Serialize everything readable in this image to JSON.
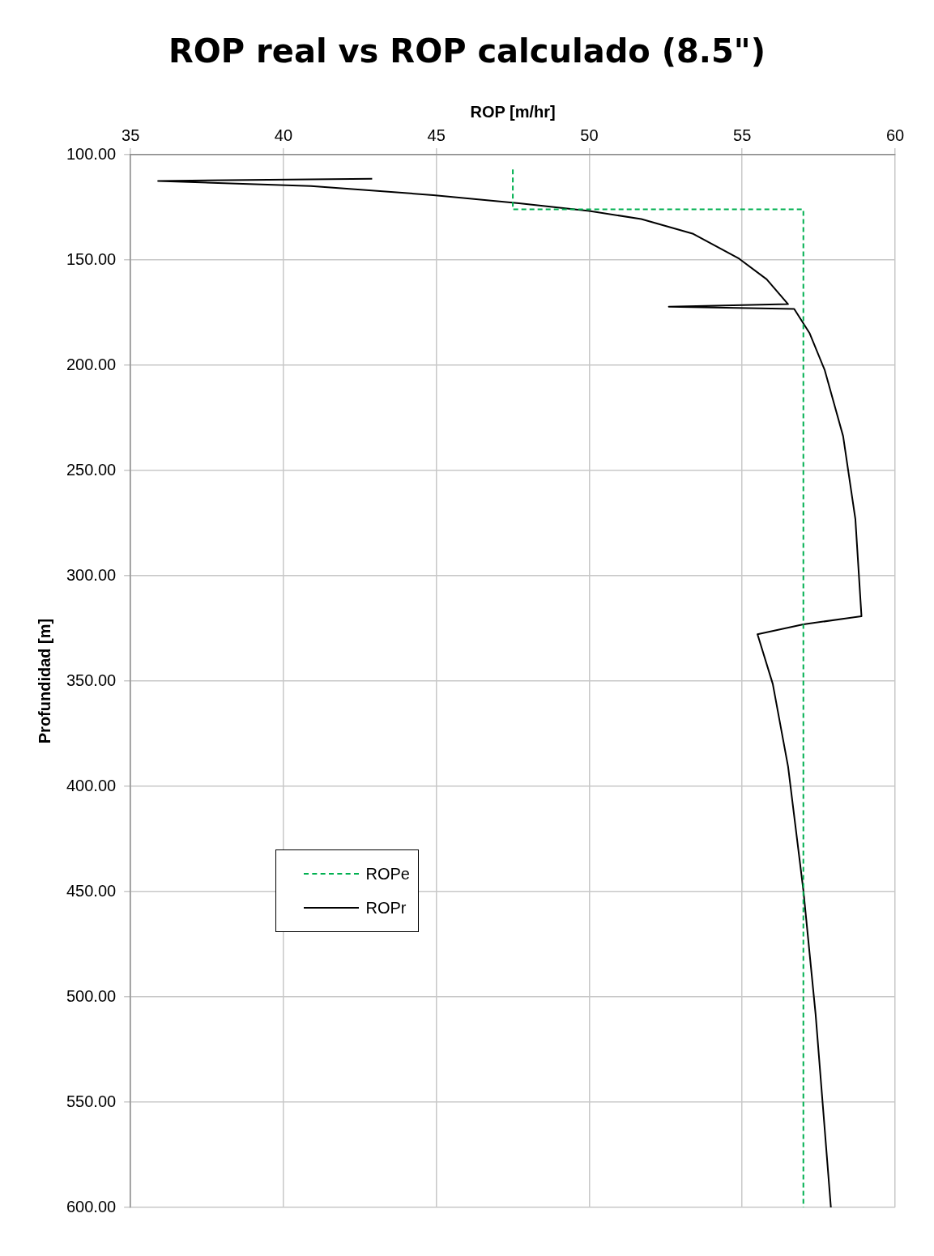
{
  "chart_data": {
    "type": "line",
    "title": "ROP real vs ROP calculado (8.5\")",
    "xlabel": "ROP [m/hr]",
    "ylabel": "Profundidad [m]",
    "xlim": [
      35,
      60
    ],
    "xticks": [
      35,
      40,
      45,
      50,
      55,
      60
    ],
    "ylim": [
      600,
      100
    ],
    "yticks": [
      {
        "value": 100,
        "label": "100.00"
      },
      {
        "value": 150,
        "label": "150.00"
      },
      {
        "value": 200,
        "label": "200.00"
      },
      {
        "value": 250,
        "label": "250.00"
      },
      {
        "value": 300,
        "label": "300.00"
      },
      {
        "value": 350,
        "label": "350.00"
      },
      {
        "value": 400,
        "label": "400.00"
      },
      {
        "value": 450,
        "label": "450.00"
      },
      {
        "value": 500,
        "label": "500.00"
      },
      {
        "value": 550,
        "label": "550.00"
      },
      {
        "value": 600,
        "label": "600.00"
      }
    ],
    "grid": true,
    "legend": "left",
    "marker": "none",
    "series": [
      {
        "name": "ROPe",
        "color": "#00b050",
        "line_style": "dashed",
        "x": [
          47.5,
          47.5,
          57,
          57
        ],
        "values": [
          107,
          126,
          126,
          600
        ]
      },
      {
        "name": "ROPr",
        "color": "#000000",
        "line_style": "solid",
        "x": [
          42.9,
          35.9,
          40.9,
          44.9,
          47.7,
          50,
          51.7,
          53.4,
          54.9,
          55.8,
          56.5,
          52.6,
          56.7,
          57.2,
          57.7,
          58.3,
          58.7,
          58.9,
          57,
          55.5,
          56,
          56.5,
          57,
          57.4,
          57.9
        ],
        "values": [
          111.4,
          112.5,
          114.9,
          119.2,
          123.1,
          126.7,
          130.6,
          137.6,
          149.4,
          159.2,
          171,
          172.2,
          173.3,
          184.7,
          202.4,
          233.7,
          273,
          319.2,
          323.1,
          327.8,
          351.4,
          390.6,
          449.4,
          508.2,
          600
        ]
      }
    ]
  }
}
